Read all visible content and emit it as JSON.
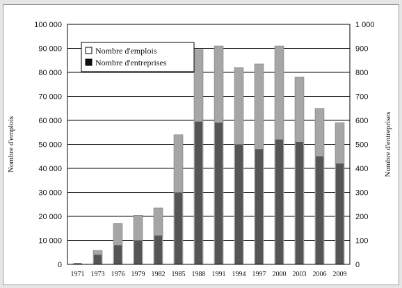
{
  "chart_data": {
    "type": "bar",
    "categories": [
      "1971",
      "1973",
      "1976",
      "1979",
      "1982",
      "1985",
      "1988",
      "1991",
      "1994",
      "1997",
      "2000",
      "2003",
      "2006",
      "2009"
    ],
    "series": [
      {
        "name": "Nombre d'emplois",
        "axis": "left",
        "color": "#a6a6a6",
        "values": [
          300,
          5800,
          17000,
          20500,
          23500,
          54000,
          89500,
          91000,
          82000,
          83500,
          91000,
          78000,
          65000,
          59000
        ]
      },
      {
        "name": "Nombre d'entreprises",
        "axis": "right",
        "color": "#555555",
        "values": [
          5,
          40,
          80,
          100,
          120,
          300,
          595,
          590,
          500,
          480,
          520,
          510,
          450,
          420
        ]
      }
    ],
    "y_left": {
      "label": "Nombre d'emplois",
      "min": 0,
      "max": 100000,
      "ticks": [
        "0",
        "10 000",
        "20 000",
        "30 000",
        "40 000",
        "50 000",
        "60 000",
        "70 000",
        "80 000",
        "90 000",
        "100 000"
      ]
    },
    "y_right": {
      "label": "Nombre d'entreprises",
      "min": 0,
      "max": 1000,
      "ticks": [
        "0",
        "100",
        "200",
        "300",
        "400",
        "500",
        "600",
        "700",
        "800",
        "900",
        "1 000"
      ]
    },
    "grid": true,
    "legend": {
      "placement": "top-left",
      "items": [
        "Nombre d'emplois",
        "Nombre d'entreprises"
      ]
    }
  }
}
